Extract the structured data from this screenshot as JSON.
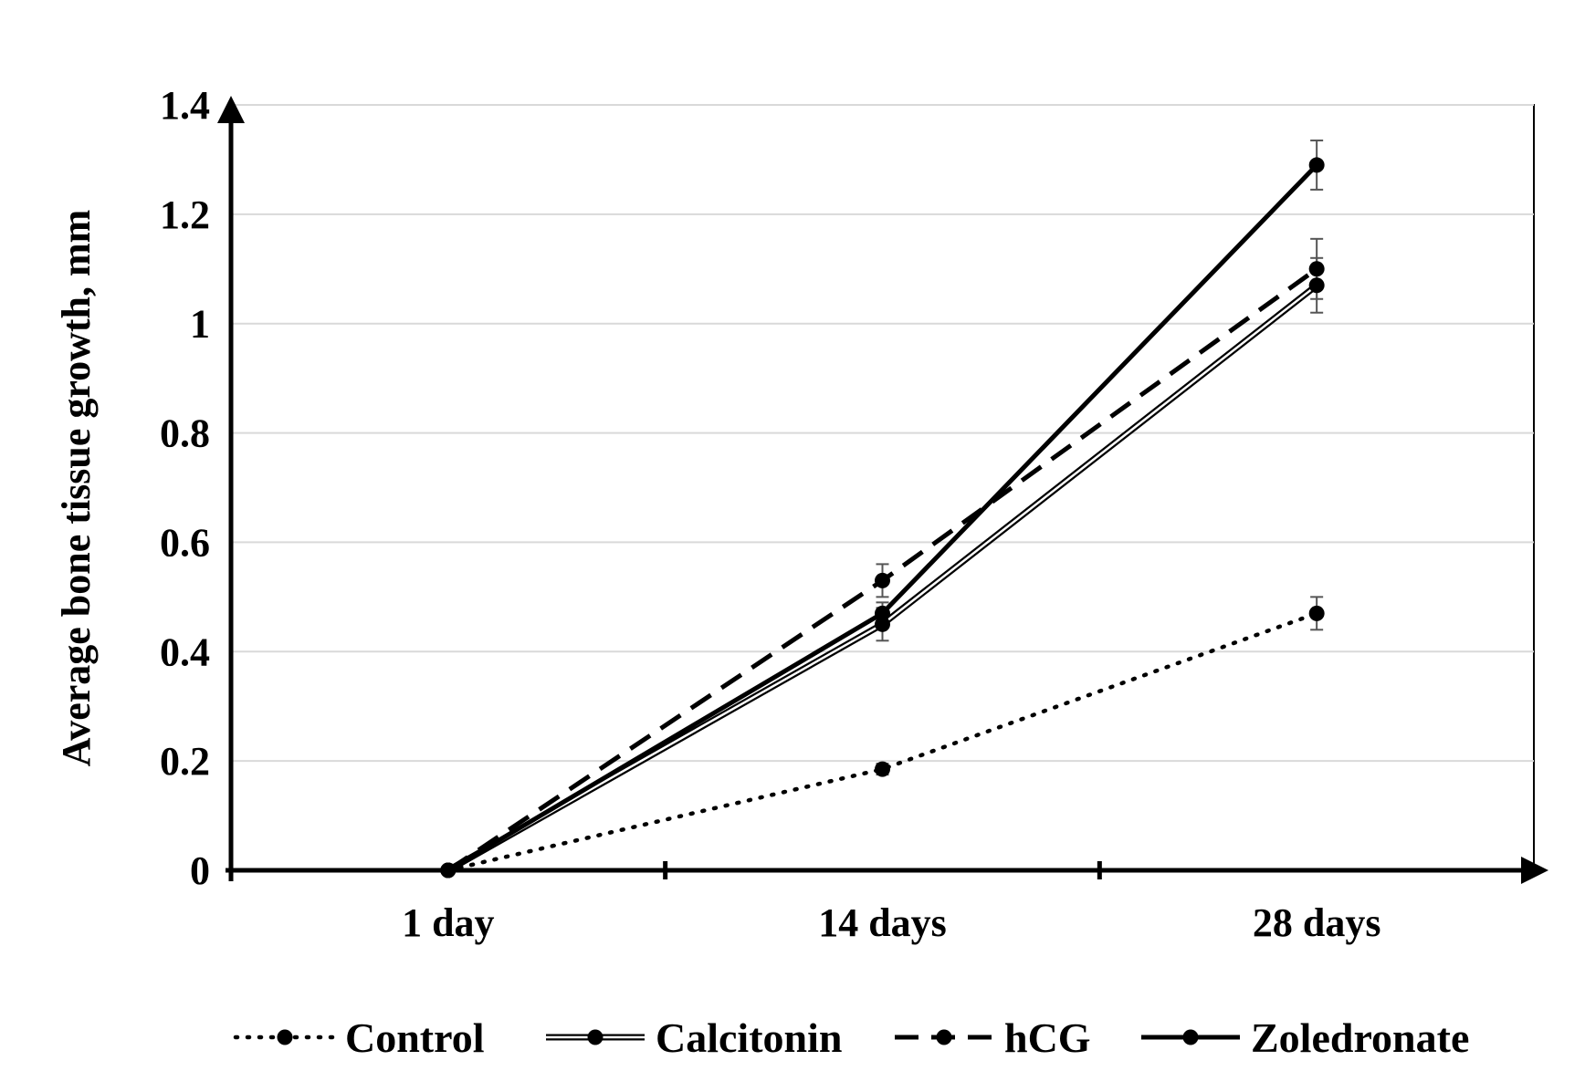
{
  "chart_data": {
    "type": "line",
    "title": "",
    "xlabel": "",
    "ylabel": "Average bone tissue growth, mm",
    "categories": [
      "1 day",
      "14 days",
      "28 days"
    ],
    "ylim": [
      0,
      1.4
    ],
    "yticks": [
      "0",
      "0.2",
      "0.4",
      "0.6",
      "0.8",
      "1",
      "1.2",
      "1.4"
    ],
    "grid": "horizontal",
    "legend_position": "bottom",
    "series": [
      {
        "name": "Control",
        "values": [
          0,
          0.185,
          0.47
        ],
        "errors": [
          0,
          0.01,
          0.03
        ],
        "style": "dotted",
        "color": "#000000"
      },
      {
        "name": "Calcitonin",
        "values": [
          0,
          0.45,
          1.07
        ],
        "errors": [
          0,
          0.03,
          0.05
        ],
        "style": "double",
        "color": "#000000"
      },
      {
        "name": "hCG",
        "values": [
          0,
          0.53,
          1.1
        ],
        "errors": [
          0,
          0.03,
          0.055
        ],
        "style": "dashed",
        "color": "#000000"
      },
      {
        "name": "Zoledronate",
        "values": [
          0,
          0.47,
          1.29
        ],
        "errors": [
          0,
          0.02,
          0.045
        ],
        "style": "solid",
        "color": "#000000"
      }
    ]
  }
}
